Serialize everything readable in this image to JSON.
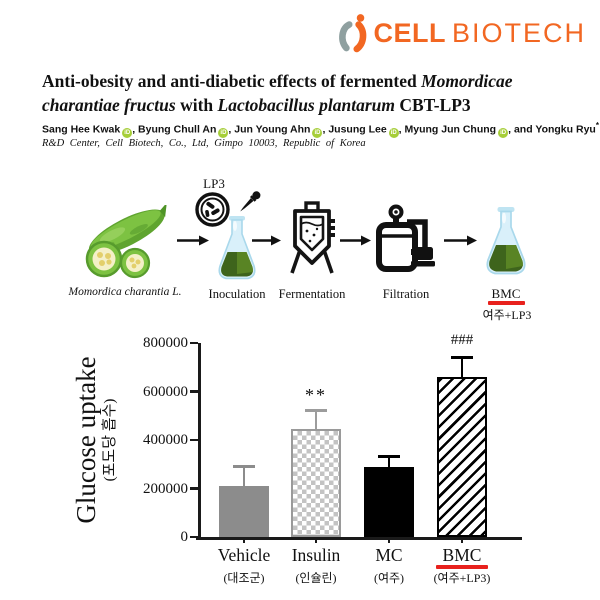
{
  "logo": {
    "brand_primary": "CELL",
    "brand_secondary": "BIOTECH",
    "brand_color": "#F26722",
    "mark_gray": "#8FA0A0"
  },
  "title": {
    "lines": [
      [
        {
          "text": "Anti-obesity and anti-diabetic effects of fermented ",
          "italic": false
        },
        {
          "text": "Momordicae",
          "italic": true
        }
      ],
      [
        {
          "text": "charantiae fructus",
          "italic": true
        },
        {
          "text": " with ",
          "italic": false
        },
        {
          "text": "Lactobacillus plantarum",
          "italic": true
        },
        {
          "text": " CBT-LP3",
          "italic": false
        }
      ]
    ]
  },
  "authors": {
    "list": [
      {
        "name": "Sang Hee Kwak",
        "orcid": true
      },
      {
        "name": "Byung Chull An",
        "orcid": true
      },
      {
        "name": "Jun Young Ahn",
        "orcid": true
      },
      {
        "name": "Jusung Lee",
        "orcid": true
      },
      {
        "name": "Myung Jun Chung",
        "orcid": true
      },
      {
        "name": "Yongku Ryu",
        "orcid": true,
        "corresponding": true
      }
    ],
    "orcid_color": "#A6CE39",
    "affiliation": "R&D Center, Cell Biotech, Co., Ltd, Gimpo 10003, Republic of Korea"
  },
  "diagram": {
    "steps": [
      {
        "label": "Momordica charantia L."
      },
      {
        "label": "Inoculation",
        "top_label": "LP3"
      },
      {
        "label": "Fermentation"
      },
      {
        "label": "Filtration"
      },
      {
        "label": "BMC",
        "sub_label": "여주+LP3"
      }
    ],
    "underline_color": "#E8211D"
  },
  "chart_data": {
    "type": "bar",
    "title": "",
    "ylabel": "Glucose uptake",
    "ylabel_sub": "(포도당 흡수)",
    "ylim": [
      0,
      800000
    ],
    "yticks": [
      0,
      200000,
      400000,
      600000,
      800000
    ],
    "categories": [
      "Vehicle",
      "Insulin",
      "MC",
      "BMC"
    ],
    "category_sublabels": [
      "(대조군)",
      "(인슐린)",
      "(여주)",
      "(여주+LP3)"
    ],
    "values": [
      210000,
      445000,
      290000,
      660000
    ],
    "errors_plus": [
      80000,
      75000,
      40000,
      80000
    ],
    "significance": [
      "",
      "**",
      "",
      "###"
    ],
    "bar_styles": [
      "solid-gray",
      "checker",
      "solid-black",
      "diagonal-hatch"
    ],
    "error_colors": [
      "#8C8C8C",
      "#9C9C9C",
      "#000000",
      "#000000"
    ],
    "highlight_category": "BMC",
    "highlight_underline_color": "#E8211D",
    "grid": false,
    "legend": false
  }
}
